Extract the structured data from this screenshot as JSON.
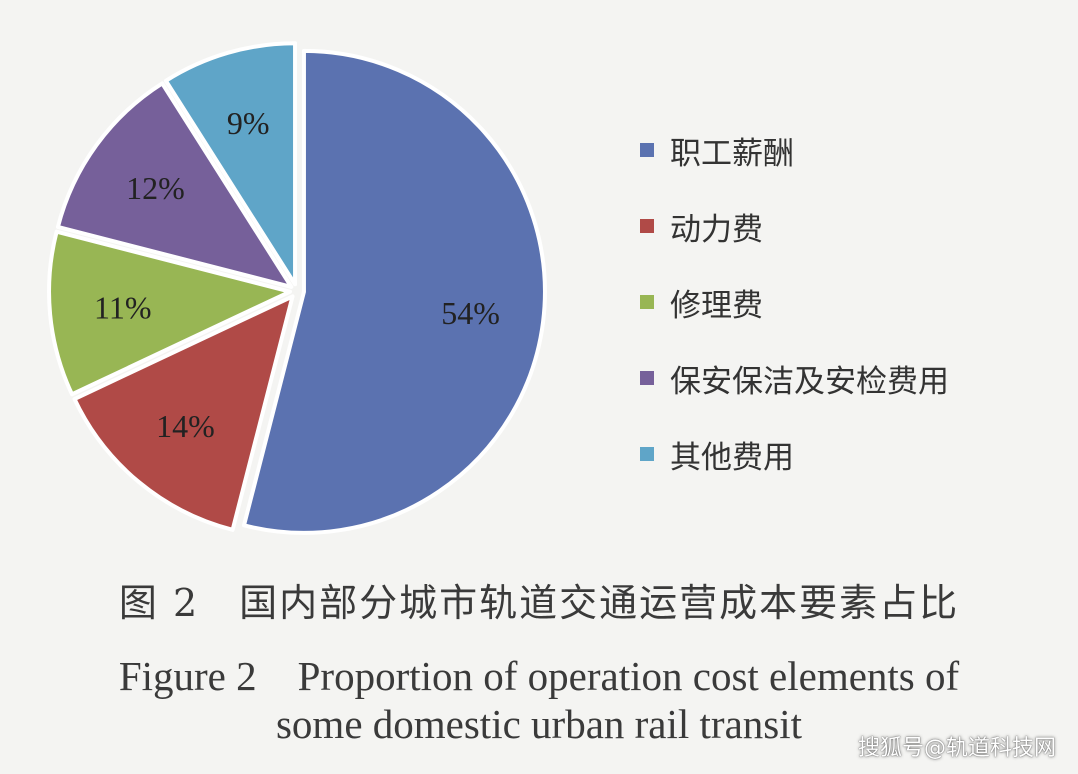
{
  "chart_data": {
    "type": "pie",
    "categories": [
      "职工薪酬",
      "动力费",
      "修理费",
      "保安保洁及安检费用",
      "其他费用"
    ],
    "values": [
      54,
      14,
      11,
      12,
      9
    ],
    "labels": [
      "54%",
      "14%",
      "11%",
      "12%",
      "9%"
    ],
    "colors": [
      "#5b72b0",
      "#b04a47",
      "#98b654",
      "#76609a",
      "#5fa5c8"
    ],
    "legend_position": "right"
  },
  "caption": {
    "zh": "图 2　国内部分城市轨道交通运营成本要素占比",
    "en_line1": "Figure 2　Proportion of operation cost elements of",
    "en_line2": "some domestic urban rail transit"
  },
  "watermark": "搜狐号@轨道科技网"
}
